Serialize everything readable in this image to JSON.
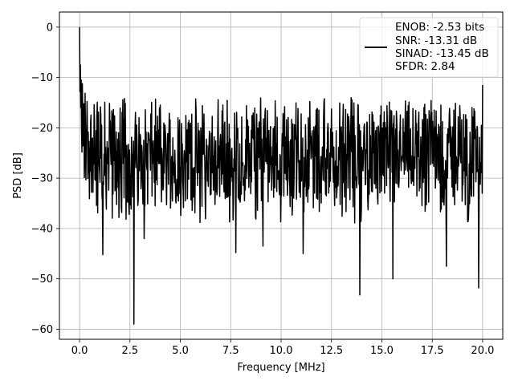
{
  "chart_data": {
    "type": "line",
    "title": "",
    "xlabel": "Frequency [MHz]",
    "ylabel": "PSD [dB]",
    "xlim": [
      -1.0,
      21.0
    ],
    "ylim": [
      -62.0,
      3.0
    ],
    "xticks": [
      0.0,
      2.5,
      5.0,
      7.5,
      10.0,
      12.5,
      15.0,
      17.5,
      20.0
    ],
    "xtick_labels": [
      "0.0",
      "2.5",
      "5.0",
      "7.5",
      "10.0",
      "12.5",
      "15.0",
      "17.5",
      "20.0"
    ],
    "yticks": [
      0,
      -10,
      -20,
      -30,
      -40,
      -50,
      -60
    ],
    "ytick_labels": [
      "0",
      "−10",
      "−20",
      "−30",
      "−40",
      "−50",
      "−60"
    ],
    "grid": true,
    "legend_position": "top-right",
    "series": [
      {
        "name": "ENOB: -2.53 bits\nSNR: -13.31 dB\nSINAD: -13.45 dB\nSFDR: 2.84",
        "color": "#000000",
        "x_range": [
          0.0,
          20.0
        ],
        "num_points": 1025,
        "start_values": [
          0.0,
          -12.8,
          -7.5,
          -16.0,
          -10.5,
          -20.5
        ],
        "noise_floor_mean": -25.5,
        "deep_dips": [
          {
            "x": 1.15,
            "y": -45.2
          },
          {
            "x": 2.7,
            "y": -59.0
          },
          {
            "x": 3.2,
            "y": -42.0
          },
          {
            "x": 7.75,
            "y": -44.8
          },
          {
            "x": 9.1,
            "y": -43.5
          },
          {
            "x": 11.1,
            "y": -45.0
          },
          {
            "x": 13.9,
            "y": -53.2
          },
          {
            "x": 15.55,
            "y": -50.0
          },
          {
            "x": 18.2,
            "y": -47.5
          },
          {
            "x": 19.8,
            "y": -51.8
          }
        ],
        "end_value": -11.5
      }
    ],
    "legend_lines": [
      "ENOB: -2.53 bits",
      "SNR: -13.31 dB",
      "SINAD: -13.45 dB",
      "SFDR: 2.84"
    ]
  }
}
